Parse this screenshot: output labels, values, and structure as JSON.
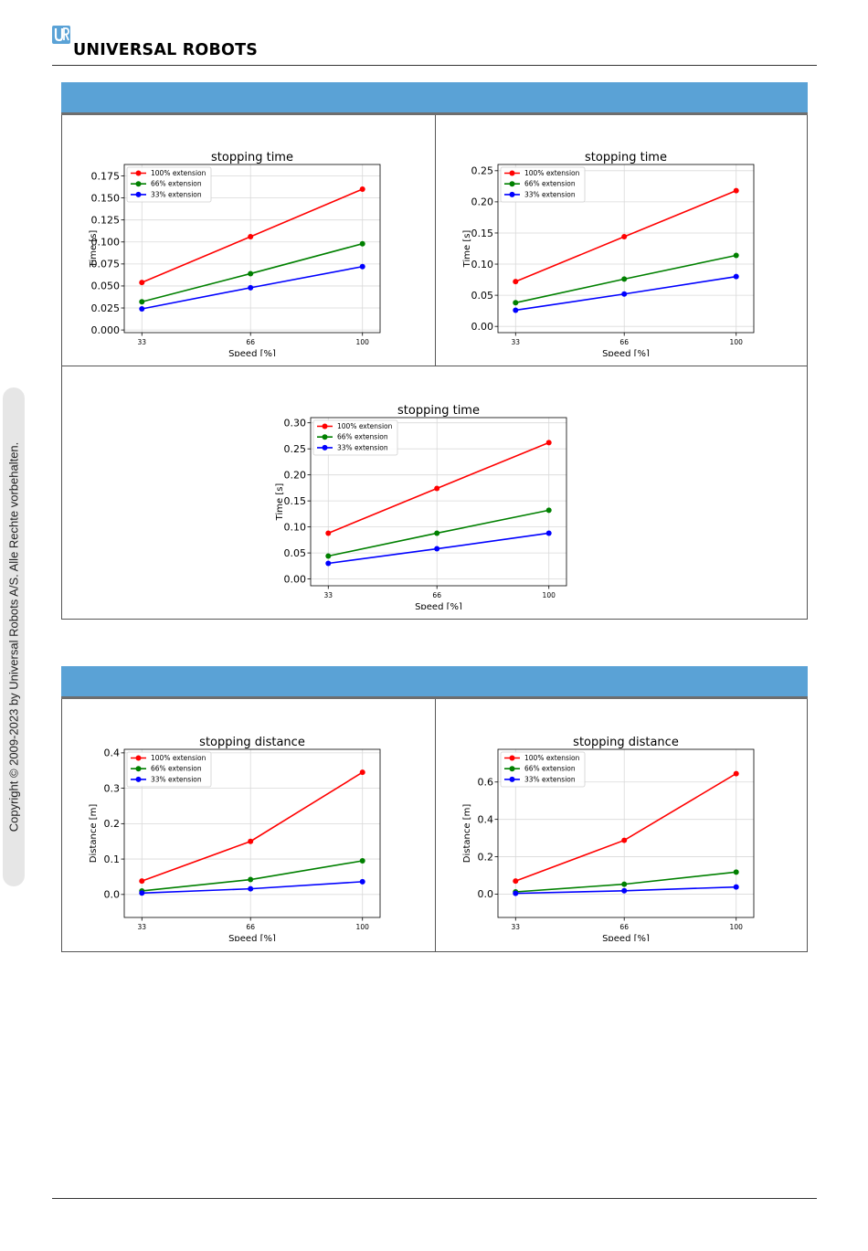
{
  "header": {
    "brand": "UNIVERSAL ROBOTS",
    "logo_mark": "UR"
  },
  "sidebar": {
    "copyright": "Copyright © 2009-2023 by Universal Robots A/S. Alle Rechte vorbehalten."
  },
  "colors": {
    "accent_bar": "#5aa2d6",
    "series_100": "#ff0000",
    "series_66": "#008000",
    "series_33": "#0000ff"
  },
  "chart_data": [
    {
      "type": "line",
      "title": "stopping time",
      "xlabel": "Speed [%]",
      "ylabel": "Time [s]",
      "categories": [
        "33",
        "66",
        "100"
      ],
      "ylim": [
        -0.003,
        0.188
      ],
      "yticks": [
        "0.000",
        "0.025",
        "0.050",
        "0.075",
        "0.100",
        "0.125",
        "0.150",
        "0.175"
      ],
      "grid": true,
      "legend": "top-left",
      "series": [
        {
          "name": "100% extension",
          "values": [
            0.054,
            0.106,
            0.16
          ]
        },
        {
          "name": "66% extension",
          "values": [
            0.032,
            0.064,
            0.098
          ]
        },
        {
          "name": "33% extension",
          "values": [
            0.024,
            0.048,
            0.072
          ]
        }
      ]
    },
    {
      "type": "line",
      "title": "stopping time",
      "xlabel": "Speed [%]",
      "ylabel": "Time [s]",
      "categories": [
        "33",
        "66",
        "100"
      ],
      "ylim": [
        -0.01,
        0.26
      ],
      "yticks": [
        "0.00",
        "0.05",
        "0.10",
        "0.15",
        "0.20",
        "0.25"
      ],
      "grid": true,
      "legend": "top-left",
      "series": [
        {
          "name": "100% extension",
          "values": [
            0.072,
            0.144,
            0.218
          ]
        },
        {
          "name": "66% extension",
          "values": [
            0.038,
            0.076,
            0.114
          ]
        },
        {
          "name": "33% extension",
          "values": [
            0.026,
            0.052,
            0.08
          ]
        }
      ]
    },
    {
      "type": "line",
      "title": "stopping time",
      "xlabel": "Speed [%]",
      "ylabel": "Time [s]",
      "categories": [
        "33",
        "66",
        "100"
      ],
      "ylim": [
        -0.013,
        0.31
      ],
      "yticks": [
        "0.00",
        "0.05",
        "0.10",
        "0.15",
        "0.20",
        "0.25",
        "0.30"
      ],
      "grid": true,
      "legend": "top-left",
      "series": [
        {
          "name": "100% extension",
          "values": [
            0.088,
            0.174,
            0.262
          ]
        },
        {
          "name": "66% extension",
          "values": [
            0.044,
            0.088,
            0.132
          ]
        },
        {
          "name": "33% extension",
          "values": [
            0.03,
            0.058,
            0.088
          ]
        }
      ]
    },
    {
      "type": "line",
      "title": "stopping distance",
      "xlabel": "Speed [%]",
      "ylabel": "Distance [m]",
      "categories": [
        "33",
        "66",
        "100"
      ],
      "ylim": [
        -0.065,
        0.41
      ],
      "yticks": [
        "0.0",
        "0.1",
        "0.2",
        "0.3",
        "0.4"
      ],
      "grid": true,
      "legend": "top-left",
      "series": [
        {
          "name": "100% extension",
          "values": [
            0.038,
            0.15,
            0.345
          ]
        },
        {
          "name": "66% extension",
          "values": [
            0.01,
            0.042,
            0.095
          ]
        },
        {
          "name": "33% extension",
          "values": [
            0.004,
            0.016,
            0.036
          ]
        }
      ]
    },
    {
      "type": "line",
      "title": "stopping distance",
      "xlabel": "Speed [%]",
      "ylabel": "Distance [m]",
      "categories": [
        "33",
        "66",
        "100"
      ],
      "ylim": [
        -0.125,
        0.775
      ],
      "yticks": [
        "0.0",
        "0.2",
        "0.4",
        "0.6"
      ],
      "grid": true,
      "legend": "top-left",
      "series": [
        {
          "name": "100% extension",
          "values": [
            0.07,
            0.288,
            0.645
          ]
        },
        {
          "name": "66% extension",
          "values": [
            0.012,
            0.053,
            0.118
          ]
        },
        {
          "name": "33% extension",
          "values": [
            0.004,
            0.018,
            0.038
          ]
        }
      ]
    }
  ]
}
